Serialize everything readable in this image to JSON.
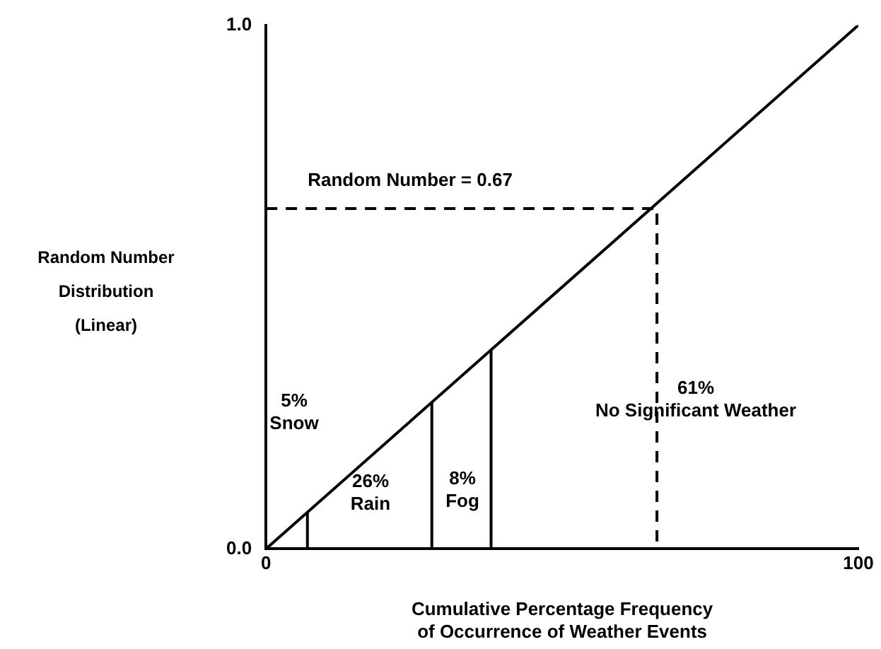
{
  "chart_data": {
    "type": "line",
    "xlabel": "Cumulative Percentage Frequency\nof Occurrence of Weather Events",
    "ylabel": "Random Number\nDistribution\n(Linear)",
    "xlim": [
      0,
      100
    ],
    "ylim": [
      0,
      1
    ],
    "xticks": [
      0,
      100
    ],
    "yticks": [
      {
        "value": 0,
        "label": "0.0"
      },
      {
        "value": 1,
        "label": "1.0"
      }
    ],
    "grid": false,
    "legend": false,
    "marker": "none",
    "series": [
      {
        "color": "#000000",
        "x": [
          0,
          100
        ],
        "values": [
          0,
          1
        ],
        "line_style": "solid"
      },
      {
        "color": "#000000",
        "x": [
          7,
          7
        ],
        "values": [
          0,
          0.07
        ],
        "line_style": "solid"
      },
      {
        "color": "#000000",
        "x": [
          28,
          28
        ],
        "values": [
          0,
          0.28
        ],
        "line_style": "solid"
      },
      {
        "color": "#000000",
        "x": [
          38,
          38
        ],
        "values": [
          0,
          0.38
        ],
        "line_style": "solid"
      },
      {
        "color": "#000000",
        "x": [
          0,
          66,
          66
        ],
        "values": [
          0.65,
          0.65,
          0
        ],
        "line_style": "dashed"
      }
    ],
    "annotations": [
      "Random Number = 0.67",
      "5%\nSnow",
      "26%\nRain",
      "8%\nFog",
      "61%\nNo Significant Weather"
    ]
  }
}
